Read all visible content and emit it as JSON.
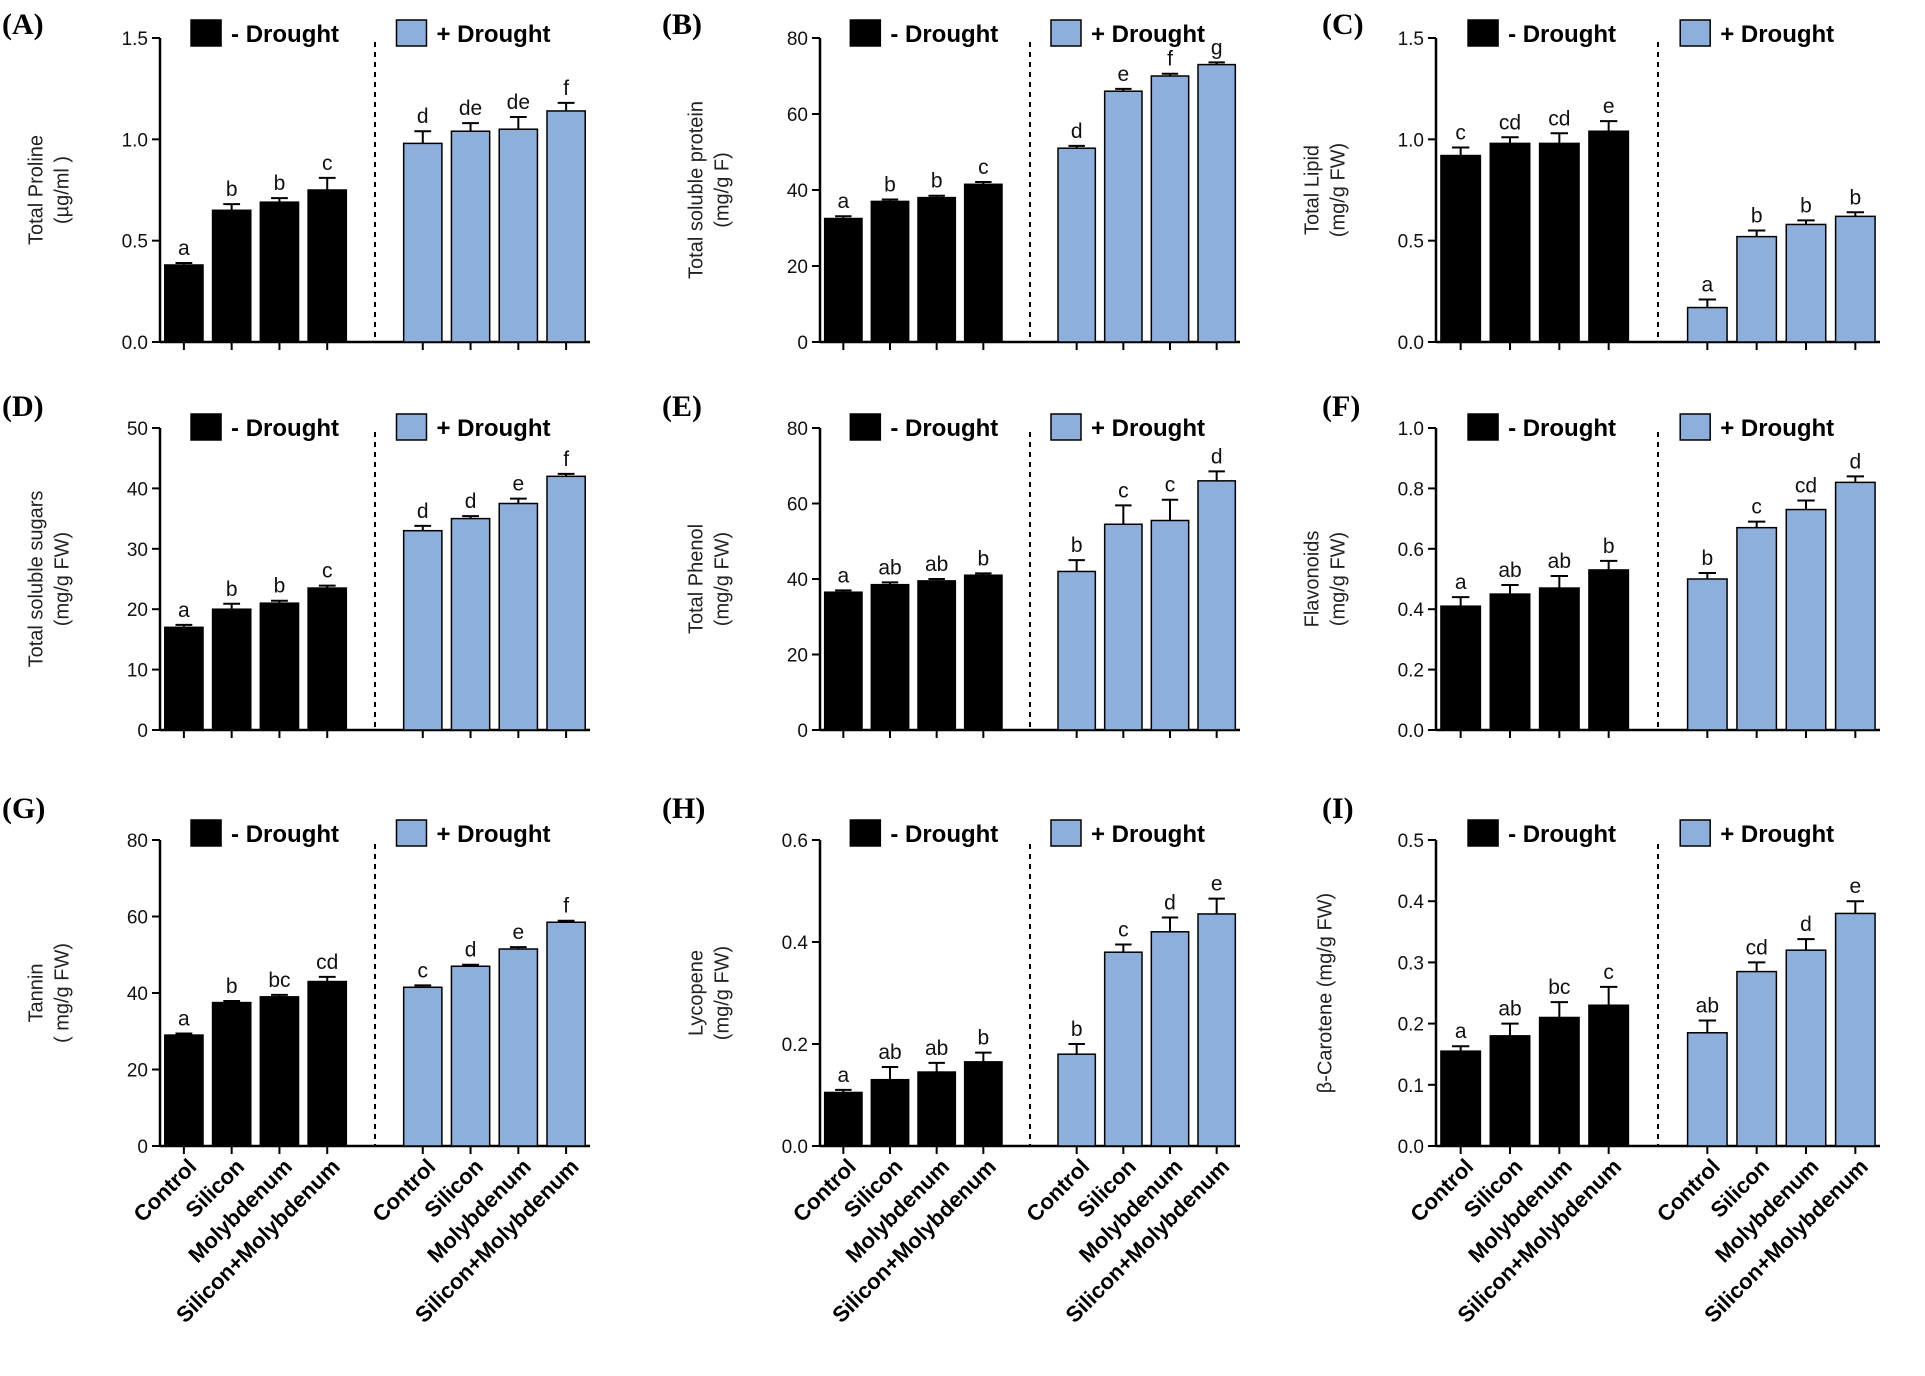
{
  "figure": {
    "legend_minus": "- Drought",
    "legend_plus": "+ Drought",
    "colors": {
      "minus": "#000000",
      "plus": "#8eaedb"
    }
  },
  "chart_data": [
    {
      "type": "bar",
      "label": "(A)",
      "ylabel": [
        "Total Proline",
        "(µg/ml )"
      ],
      "ylim": [
        0,
        1.5
      ],
      "yticks": [
        "0.0",
        "0.5",
        "1.0",
        "1.5"
      ],
      "categories": [
        "Control",
        "Silicon",
        "Molybdenum",
        "Silicon+Molybdenum"
      ],
      "series": [
        {
          "name": "- Drought",
          "values": [
            0.38,
            0.65,
            0.69,
            0.75
          ],
          "errors": [
            0.01,
            0.03,
            0.02,
            0.06
          ],
          "letters": [
            "a",
            "b",
            "b",
            "c"
          ]
        },
        {
          "name": "+ Drought",
          "values": [
            0.98,
            1.04,
            1.05,
            1.14
          ],
          "errors": [
            0.06,
            0.04,
            0.06,
            0.04
          ],
          "letters": [
            "d",
            "de",
            "de",
            "f"
          ]
        }
      ]
    },
    {
      "type": "bar",
      "label": "(B)",
      "ylabel": [
        "Total soluble protein",
        "(mg/g F)"
      ],
      "ylim": [
        0,
        80
      ],
      "yticks": [
        "0",
        "20",
        "40",
        "60",
        "80"
      ],
      "categories": [
        "Control",
        "Silicon",
        "Molybdenum",
        "Silicon+Molybdenum"
      ],
      "series": [
        {
          "name": "- Drought",
          "values": [
            32.5,
            37,
            38,
            41.5
          ],
          "errors": [
            0.6,
            0.5,
            0.5,
            0.6
          ],
          "letters": [
            "a",
            "b",
            "b",
            "c"
          ]
        },
        {
          "name": "+ Drought",
          "values": [
            51,
            66,
            70,
            73
          ],
          "errors": [
            0.6,
            0.6,
            0.6,
            0.6
          ],
          "letters": [
            "d",
            "e",
            "f",
            "g"
          ]
        }
      ]
    },
    {
      "type": "bar",
      "label": "(C)",
      "ylabel": [
        "Total Lipid",
        "(mg/g FW)"
      ],
      "ylim": [
        0,
        1.5
      ],
      "yticks": [
        "0.0",
        "0.5",
        "1.0",
        "1.5"
      ],
      "categories": [
        "Control",
        "Silicon",
        "Molybdenum",
        "Silicon+Molybdenum"
      ],
      "series": [
        {
          "name": "- Drought",
          "values": [
            0.92,
            0.98,
            0.98,
            1.04
          ],
          "errors": [
            0.04,
            0.03,
            0.05,
            0.05
          ],
          "letters": [
            "c",
            "cd",
            "cd",
            "e"
          ]
        },
        {
          "name": "+ Drought",
          "values": [
            0.17,
            0.52,
            0.58,
            0.62
          ],
          "errors": [
            0.04,
            0.03,
            0.02,
            0.02
          ],
          "letters": [
            "a",
            "b",
            "b",
            "b"
          ]
        }
      ]
    },
    {
      "type": "bar",
      "label": "(D)",
      "ylabel": [
        "Total soluble sugars",
        "(mg/g FW)"
      ],
      "ylim": [
        0,
        50
      ],
      "yticks": [
        "0",
        "10",
        "20",
        "30",
        "40",
        "50"
      ],
      "categories": [
        "Control",
        "Silicon",
        "Molybdenum",
        "Silicon+Molybdenum"
      ],
      "series": [
        {
          "name": "- Drought",
          "values": [
            17,
            20,
            21,
            23.5
          ],
          "errors": [
            0.4,
            0.9,
            0.4,
            0.4
          ],
          "letters": [
            "a",
            "b",
            "b",
            "c"
          ]
        },
        {
          "name": "+ Drought",
          "values": [
            33,
            35,
            37.5,
            42
          ],
          "errors": [
            0.8,
            0.4,
            0.8,
            0.4
          ],
          "letters": [
            "d",
            "d",
            "e",
            "f"
          ]
        }
      ]
    },
    {
      "type": "bar",
      "label": "(E)",
      "ylabel": [
        "Total Phenol",
        "(mg/g FW)"
      ],
      "ylim": [
        0,
        80
      ],
      "yticks": [
        "0",
        "20",
        "40",
        "60",
        "80"
      ],
      "categories": [
        "Control",
        "Silicon",
        "Molybdenum",
        "Silicon+Molybdenum"
      ],
      "series": [
        {
          "name": "- Drought",
          "values": [
            36.5,
            38.5,
            39.5,
            41
          ],
          "errors": [
            0.5,
            0.6,
            0.5,
            0.5
          ],
          "letters": [
            "a",
            "ab",
            "ab",
            "b"
          ]
        },
        {
          "name": "+ Drought",
          "values": [
            42,
            54.5,
            55.5,
            66
          ],
          "errors": [
            3,
            5,
            5.5,
            2.5
          ],
          "letters": [
            "b",
            "c",
            "c",
            "d"
          ]
        }
      ]
    },
    {
      "type": "bar",
      "label": "(F)",
      "ylabel": [
        "Flavonoids",
        "(mg/g FW)"
      ],
      "ylim": [
        0,
        1.0
      ],
      "yticks": [
        "0.0",
        "0.2",
        "0.4",
        "0.6",
        "0.8",
        "1.0"
      ],
      "categories": [
        "Control",
        "Silicon",
        "Molybdenum",
        "Silicon+Molybdenum"
      ],
      "series": [
        {
          "name": "- Drought",
          "values": [
            0.41,
            0.45,
            0.47,
            0.53
          ],
          "errors": [
            0.03,
            0.03,
            0.04,
            0.03
          ],
          "letters": [
            "a",
            "ab",
            "ab",
            "b"
          ]
        },
        {
          "name": "+ Drought",
          "values": [
            0.5,
            0.67,
            0.73,
            0.82
          ],
          "errors": [
            0.02,
            0.02,
            0.03,
            0.02
          ],
          "letters": [
            "b",
            "c",
            "cd",
            "d"
          ]
        }
      ]
    },
    {
      "type": "bar",
      "label": "(G)",
      "ylabel": [
        "Tannin",
        "( mg/g FW)"
      ],
      "ylim": [
        0,
        80
      ],
      "yticks": [
        "0",
        "20",
        "40",
        "60",
        "80"
      ],
      "categories": [
        "Control",
        "Silicon",
        "Molybdenum",
        "Silicon+Molybdenum"
      ],
      "series": [
        {
          "name": "- Drought",
          "values": [
            29,
            37.5,
            39,
            43
          ],
          "errors": [
            0.4,
            0.4,
            0.5,
            1.2
          ],
          "letters": [
            "a",
            "b",
            "bc",
            "cd"
          ]
        },
        {
          "name": "+ Drought",
          "values": [
            41.5,
            47,
            51.5,
            58.5
          ],
          "errors": [
            0.5,
            0.4,
            0.5,
            0.4
          ],
          "letters": [
            "c",
            "d",
            "e",
            "f"
          ]
        }
      ]
    },
    {
      "type": "bar",
      "label": "(H)",
      "ylabel": [
        "Lycopene",
        "(mg/g FW)"
      ],
      "ylim": [
        0,
        0.6
      ],
      "yticks": [
        "0.0",
        "0.2",
        "0.4",
        "0.6"
      ],
      "categories": [
        "Control",
        "Silicon",
        "Molybdenum",
        "Silicon+Molybdenum"
      ],
      "series": [
        {
          "name": "- Drought",
          "values": [
            0.105,
            0.13,
            0.145,
            0.165
          ],
          "errors": [
            0.005,
            0.025,
            0.018,
            0.018
          ],
          "letters": [
            "a",
            "ab",
            "ab",
            "b"
          ]
        },
        {
          "name": "+ Drought",
          "values": [
            0.18,
            0.38,
            0.42,
            0.455
          ],
          "errors": [
            0.02,
            0.015,
            0.028,
            0.03
          ],
          "letters": [
            "b",
            "c",
            "d",
            "e"
          ]
        }
      ]
    },
    {
      "type": "bar",
      "label": "(I)",
      "ylabel": [
        "β-Carotene (mg/g FW)"
      ],
      "ylim": [
        0,
        0.5
      ],
      "yticks": [
        "0.0",
        "0.1",
        "0.2",
        "0.3",
        "0.4",
        "0.5"
      ],
      "categories": [
        "Control",
        "Silicon",
        "Molybdenum",
        "Silicon+Molybdenum"
      ],
      "series": [
        {
          "name": "- Drought",
          "values": [
            0.155,
            0.18,
            0.21,
            0.23
          ],
          "errors": [
            0.008,
            0.02,
            0.025,
            0.03
          ],
          "letters": [
            "a",
            "ab",
            "bc",
            "c"
          ]
        },
        {
          "name": "+ Drought",
          "values": [
            0.185,
            0.285,
            0.32,
            0.38
          ],
          "errors": [
            0.02,
            0.015,
            0.018,
            0.02
          ],
          "letters": [
            "ab",
            "cd",
            "d",
            "e"
          ]
        }
      ]
    }
  ]
}
